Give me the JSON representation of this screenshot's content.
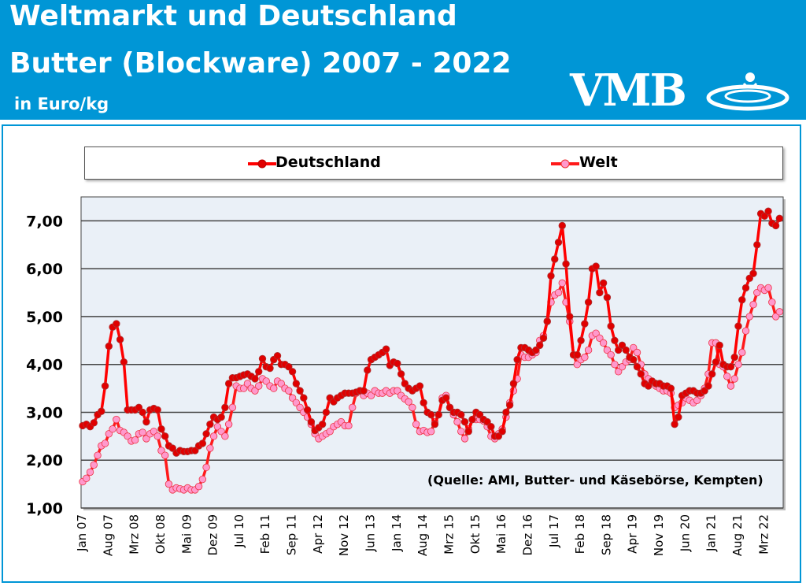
{
  "header": {
    "title_line1": "Weltmarkt und Deutschland",
    "title_line2": "Butter (Blockware) 2007 - 2022",
    "unit": "in Euro/kg",
    "logo_text": "VMB"
  },
  "chart_data": {
    "type": "line",
    "title": "Butter (Blockware) 2007 - 2022",
    "ylabel": "in Euro/kg",
    "ylim": [
      1,
      7.5
    ],
    "y_ticks": [
      "1,00",
      "2,00",
      "3,00",
      "4,00",
      "5,00",
      "6,00",
      "7,00"
    ],
    "x_start": "Jan 07",
    "x_end": "Jul 22",
    "x_step": "monthly",
    "x_tick_labels": [
      "Jan 07",
      "Aug 07",
      "Mrz 08",
      "Okt 08",
      "Mai 09",
      "Dez 09",
      "Jul 10",
      "Feb 11",
      "Sep 11",
      "Apr 12",
      "Nov 12",
      "Jun 13",
      "Jan 14",
      "Aug 14",
      "Mrz 15",
      "Okt 15",
      "Mai 16",
      "Dez 16",
      "Jul 17",
      "Feb 18",
      "Sep 18",
      "Apr 19",
      "Nov 19",
      "Jun 20",
      "Jan 21",
      "Aug 21",
      "Mrz 22"
    ],
    "grid": true,
    "legend_position": "top",
    "annotation": "(Quelle: AMI, Butter- und Käsebörse, Kempten)",
    "series": [
      {
        "name": "Deutschland",
        "color": "#ff0000",
        "marker_color": "#e00000",
        "values": [
          2.72,
          2.75,
          2.7,
          2.78,
          2.95,
          3.02,
          3.55,
          4.38,
          4.78,
          4.85,
          4.52,
          4.05,
          3.05,
          3.05,
          3.05,
          3.1,
          3.0,
          2.8,
          3.05,
          3.08,
          3.05,
          2.65,
          2.5,
          2.3,
          2.25,
          2.15,
          2.2,
          2.18,
          2.18,
          2.2,
          2.2,
          2.3,
          2.35,
          2.55,
          2.75,
          2.9,
          2.85,
          2.9,
          3.1,
          3.6,
          3.72,
          3.72,
          3.75,
          3.78,
          3.8,
          3.75,
          3.7,
          3.85,
          4.12,
          3.95,
          3.92,
          4.1,
          4.18,
          4.0,
          4.0,
          3.95,
          3.85,
          3.6,
          3.45,
          3.3,
          3.05,
          2.8,
          2.62,
          2.68,
          2.75,
          3.0,
          3.3,
          3.22,
          3.3,
          3.35,
          3.4,
          3.4,
          3.4,
          3.42,
          3.45,
          3.45,
          3.88,
          4.1,
          4.15,
          4.2,
          4.25,
          4.32,
          3.98,
          4.05,
          4.02,
          3.8,
          3.6,
          3.5,
          3.45,
          3.5,
          3.55,
          3.2,
          3.0,
          2.95,
          2.75,
          2.95,
          3.25,
          3.3,
          3.1,
          3.0,
          3.0,
          2.95,
          2.8,
          2.6,
          2.85,
          3.0,
          2.95,
          2.85,
          2.8,
          2.7,
          2.5,
          2.5,
          2.6,
          3.0,
          3.15,
          3.6,
          4.1,
          4.35,
          4.35,
          4.3,
          4.25,
          4.3,
          4.4,
          4.55,
          4.9,
          5.85,
          6.2,
          6.55,
          6.9,
          6.1,
          5.0,
          4.2,
          4.2,
          4.5,
          4.85,
          5.3,
          6.0,
          6.05,
          5.5,
          5.7,
          5.4,
          4.8,
          4.5,
          4.3,
          4.4,
          4.3,
          4.15,
          4.1,
          3.95,
          3.8,
          3.6,
          3.55,
          3.65,
          3.6,
          3.6,
          3.55,
          3.55,
          3.5,
          2.75,
          2.9,
          3.35,
          3.4,
          3.45,
          3.45,
          3.4,
          3.4,
          3.45,
          3.55,
          3.8,
          4.05,
          4.4,
          4.0,
          3.95,
          3.95,
          4.15,
          4.8,
          5.35,
          5.6,
          5.8,
          5.9,
          6.5,
          7.15,
          7.1,
          7.2,
          6.95,
          6.9,
          7.05
        ]
      },
      {
        "name": "Welt",
        "color": "#ff1a1a",
        "marker_color": "#ff99cc",
        "values": [
          1.55,
          1.62,
          1.75,
          1.9,
          2.1,
          2.3,
          2.35,
          2.55,
          2.65,
          2.85,
          2.62,
          2.58,
          2.5,
          2.4,
          2.42,
          2.55,
          2.58,
          2.45,
          2.55,
          2.6,
          2.5,
          2.2,
          2.1,
          1.5,
          1.38,
          1.42,
          1.4,
          1.38,
          1.42,
          1.38,
          1.38,
          1.45,
          1.6,
          1.85,
          2.25,
          2.5,
          2.7,
          2.6,
          2.5,
          2.75,
          3.1,
          3.55,
          3.5,
          3.5,
          3.6,
          3.5,
          3.45,
          3.55,
          3.7,
          3.65,
          3.55,
          3.5,
          3.65,
          3.6,
          3.5,
          3.45,
          3.3,
          3.2,
          3.1,
          3.0,
          2.9,
          2.75,
          2.55,
          2.45,
          2.5,
          2.55,
          2.6,
          2.7,
          2.75,
          2.8,
          2.72,
          2.72,
          3.1,
          3.4,
          3.45,
          3.35,
          3.4,
          3.35,
          3.45,
          3.4,
          3.4,
          3.45,
          3.4,
          3.45,
          3.45,
          3.35,
          3.28,
          3.22,
          3.1,
          2.75,
          2.6,
          2.62,
          2.58,
          2.6,
          2.8,
          2.95,
          3.3,
          3.35,
          3.1,
          2.95,
          2.8,
          2.6,
          2.45,
          2.65,
          2.85,
          2.85,
          2.85,
          2.82,
          2.7,
          2.5,
          2.45,
          2.55,
          2.65,
          2.9,
          3.2,
          3.45,
          3.7,
          4.2,
          4.15,
          4.15,
          4.2,
          4.25,
          4.5,
          4.6,
          4.9,
          5.3,
          5.45,
          5.5,
          5.7,
          5.3,
          4.9,
          4.2,
          4.0,
          4.1,
          4.15,
          4.3,
          4.6,
          4.65,
          4.55,
          4.45,
          4.3,
          4.2,
          4.0,
          3.85,
          3.95,
          4.05,
          4.1,
          4.35,
          4.25,
          4.0,
          3.8,
          3.7,
          3.65,
          3.55,
          3.5,
          3.45,
          3.45,
          3.4,
          3.1,
          3.15,
          3.2,
          3.3,
          3.25,
          3.2,
          3.25,
          3.35,
          3.5,
          3.8,
          4.45,
          4.45,
          4.0,
          3.95,
          3.75,
          3.55,
          3.7,
          4.0,
          4.25,
          4.7,
          5.0,
          5.25,
          5.5,
          5.6,
          5.55,
          5.6,
          5.3,
          5.0,
          5.1
        ]
      }
    ]
  }
}
